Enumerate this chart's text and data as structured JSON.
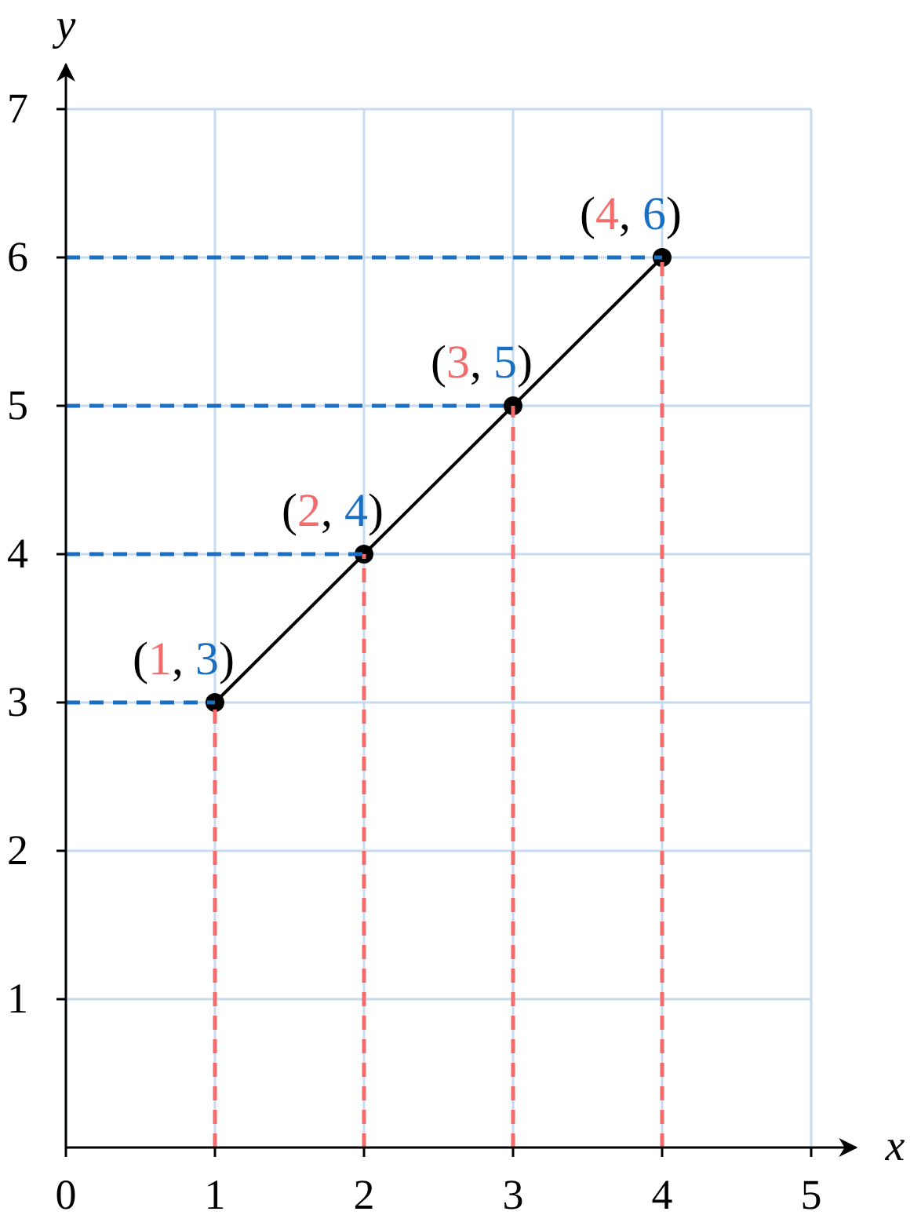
{
  "chart_data": {
    "type": "line",
    "xlabel": "x",
    "ylabel": "y",
    "xlim": [
      0,
      5.3
    ],
    "ylim": [
      0,
      7.3
    ],
    "xticks": [
      {
        "value": 0,
        "label": "0"
      },
      1,
      2,
      3,
      4,
      5
    ],
    "yticks": [
      1,
      2,
      3,
      4,
      5,
      6,
      7
    ],
    "grid": true,
    "series": [
      {
        "color": "#000000",
        "x": [
          1,
          2,
          3,
          4
        ],
        "values": [
          3,
          4,
          5,
          6
        ],
        "marker": "circle",
        "line_style": "solid"
      },
      {
        "color": "#f46b6b",
        "x": [
          1,
          1
        ],
        "values": [
          0,
          3
        ],
        "marker": "none",
        "line_style": "dashed"
      },
      {
        "color": "#f46b6b",
        "x": [
          2,
          2
        ],
        "values": [
          0,
          4
        ],
        "marker": "none",
        "line_style": "dashed"
      },
      {
        "color": "#f46b6b",
        "x": [
          3,
          3
        ],
        "values": [
          0,
          5
        ],
        "marker": "none",
        "line_style": "dashed"
      },
      {
        "color": "#f46b6b",
        "x": [
          4,
          4
        ],
        "values": [
          0,
          6
        ],
        "marker": "none",
        "line_style": "dashed"
      },
      {
        "color": "#1a6fc2",
        "x": [
          0,
          1
        ],
        "values": [
          3,
          3
        ],
        "marker": "none",
        "line_style": "dashed"
      },
      {
        "color": "#1a6fc2",
        "x": [
          0,
          2
        ],
        "values": [
          4,
          4
        ],
        "marker": "none",
        "line_style": "dashed"
      },
      {
        "color": "#1a6fc2",
        "x": [
          0,
          3
        ],
        "values": [
          5,
          5
        ],
        "marker": "none",
        "line_style": "dashed"
      },
      {
        "color": "#1a6fc2",
        "x": [
          0,
          4
        ],
        "values": [
          6,
          6
        ],
        "marker": "none",
        "line_style": "dashed"
      }
    ],
    "annotations": [
      {
        "text": "(1, 3)",
        "x": 1,
        "y": 3
      },
      {
        "text": "(2, 4)",
        "x": 2,
        "y": 4
      },
      {
        "text": "(3, 5)",
        "x": 3,
        "y": 5
      },
      {
        "text": "(4, 6)",
        "x": 4,
        "y": 6
      }
    ]
  }
}
